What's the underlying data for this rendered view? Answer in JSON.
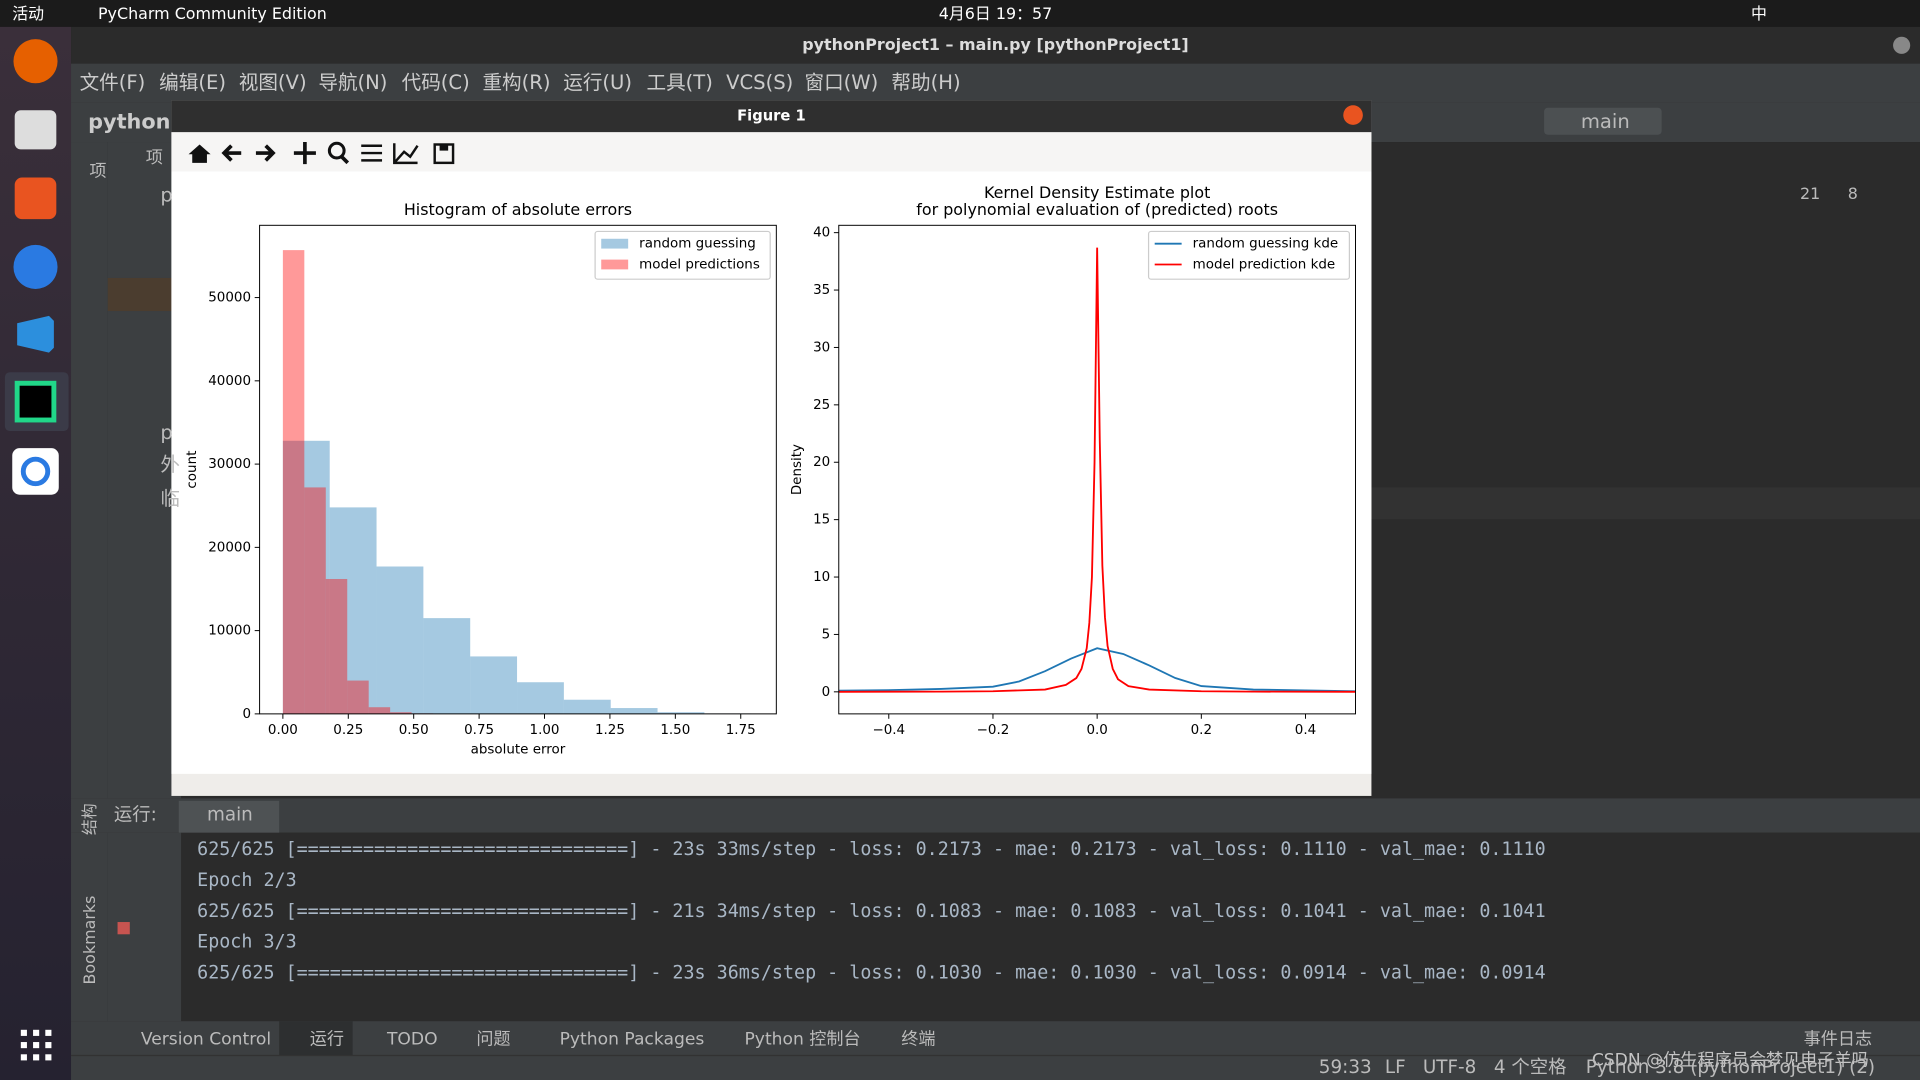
{
  "top_bar": {
    "activities": "活动",
    "app": "PyCharm Community Edition",
    "clock": "4月6日 19：57",
    "input_method": "中"
  },
  "window": {
    "title": "pythonProject1 – main.py [pythonProject1]",
    "menu": [
      "文件(F)",
      "编辑(E)",
      "视图(V)",
      "导航(N)",
      "代码(C)",
      "重构(R)",
      "运行(U)",
      "工具(T)",
      "VCS(S)",
      "窗口(W)",
      "帮助(H)"
    ],
    "project_name": "pythonP",
    "run_config": "main",
    "inspections": {
      "warnings": 21,
      "ok": 8
    }
  },
  "project_panel": {
    "tab": "项",
    "header": "项",
    "tree": [
      "p",
      "p",
      "外",
      "临"
    ]
  },
  "figure": {
    "title": "Figure 1"
  },
  "chart_data": [
    {
      "type": "histogram",
      "title": "Histogram of absolute errors",
      "xlabel": "absolute error",
      "ylabel": "count",
      "xlim": [
        -0.089,
        1.886
      ],
      "ylim": [
        0,
        58680
      ],
      "xticks": [
        {
          "value": 0,
          "label": "0.00"
        },
        {
          "value": 0.25,
          "label": "0.25"
        },
        {
          "value": 0.5,
          "label": "0.50"
        },
        {
          "value": 0.75,
          "label": "0.75"
        },
        {
          "value": 1,
          "label": "1.00"
        },
        {
          "value": 1.25,
          "label": "1.25"
        },
        {
          "value": 1.5,
          "label": "1.50"
        },
        {
          "value": 1.75,
          "label": "1.75"
        }
      ],
      "yticks": [
        0,
        10000,
        20000,
        30000,
        40000,
        50000
      ],
      "legend": "upper right",
      "opacity": 0.4,
      "series": [
        {
          "name": "random guessing",
          "color": "#1f77b4",
          "bins": [
            0,
            0.179,
            0.358,
            0.537,
            0.716,
            0.895,
            1.074,
            1.253,
            1.432,
            1.611,
            1.79
          ],
          "values": [
            32800,
            24800,
            17700,
            11500,
            6900,
            3800,
            1700,
            700,
            200,
            50
          ]
        },
        {
          "name": "model predictions",
          "color": "#ff0000",
          "bins": [
            0,
            0.082,
            0.164,
            0.246,
            0.328,
            0.41,
            0.492,
            0.574,
            0.656,
            0.738,
            0.82
          ],
          "values": [
            55700,
            27200,
            16200,
            4000,
            800,
            200,
            60,
            20,
            10,
            5
          ]
        }
      ]
    },
    {
      "type": "line",
      "title_lines": [
        "Kernel Density Estimate plot",
        "for polynomial evaluation of (predicted) roots"
      ],
      "ylabel": "Density",
      "xlim": [
        -0.496,
        0.496
      ],
      "ylim": [
        -1.92,
        40.64
      ],
      "xticks": [
        {
          "value": -0.4,
          "label": "−0.4"
        },
        {
          "value": -0.2,
          "label": "−0.2"
        },
        {
          "value": 0,
          "label": "0.0"
        },
        {
          "value": 0.2,
          "label": "0.2"
        },
        {
          "value": 0.4,
          "label": "0.4"
        }
      ],
      "yticks": [
        0,
        5,
        10,
        15,
        20,
        25,
        30,
        35,
        40
      ],
      "legend": "upper right",
      "series": [
        {
          "name": "random guessing kde",
          "color": "#1f77b4",
          "x": [
            -0.5,
            -0.4,
            -0.3,
            -0.2,
            -0.15,
            -0.1,
            -0.05,
            0,
            0.05,
            0.1,
            0.15,
            0.2,
            0.3,
            0.4,
            0.5
          ],
          "values": [
            0.1,
            0.15,
            0.25,
            0.45,
            0.9,
            1.8,
            2.9,
            3.8,
            3.3,
            2.3,
            1.2,
            0.5,
            0.2,
            0.12,
            0.05
          ]
        },
        {
          "name": "model prediction kde",
          "color": "#ff0000",
          "x": [
            -0.5,
            -0.3,
            -0.2,
            -0.1,
            -0.06,
            -0.04,
            -0.03,
            -0.02,
            -0.015,
            -0.01,
            -0.005,
            0,
            0.005,
            0.01,
            0.015,
            0.02,
            0.03,
            0.04,
            0.06,
            0.1,
            0.2,
            0.3,
            0.5
          ],
          "values": [
            0,
            0.02,
            0.05,
            0.2,
            0.6,
            1.2,
            2,
            3.8,
            6,
            10,
            20,
            38.7,
            22,
            11,
            6.5,
            4,
            2,
            1.1,
            0.5,
            0.2,
            0.05,
            0.02,
            0
          ]
        }
      ]
    }
  ],
  "run_panel": {
    "label": "运行:",
    "tab": "main",
    "console": [
      "625/625 [==============================] - 23s 33ms/step - loss: 0.2173 - mae: 0.2173 - val_loss: 0.1110 - val_mae: 0.1110",
      "Epoch 2/3",
      "625/625 [==============================] - 21s 34ms/step - loss: 0.1083 - mae: 0.1083 - val_loss: 0.1041 - val_mae: 0.1041",
      "Epoch 3/3",
      "625/625 [==============================] - 23s 36ms/step - loss: 0.1030 - mae: 0.1030 - val_loss: 0.0914 - val_mae: 0.0914"
    ]
  },
  "side_tabs": {
    "structure": "结构",
    "bookmarks": "Bookmarks"
  },
  "tool_tabs": [
    "Version Control",
    "运行",
    "TODO",
    "问题",
    "Python Packages",
    "Python 控制台",
    "终端"
  ],
  "event_log": "事件日志",
  "status_bar": [
    "59:33",
    "LF",
    "UTF-8",
    "4 个空格",
    "Python 3.8 (pythonProject1) (2)"
  ],
  "watermark": "CSDN @仿生程序员会梦见电子羊吗"
}
